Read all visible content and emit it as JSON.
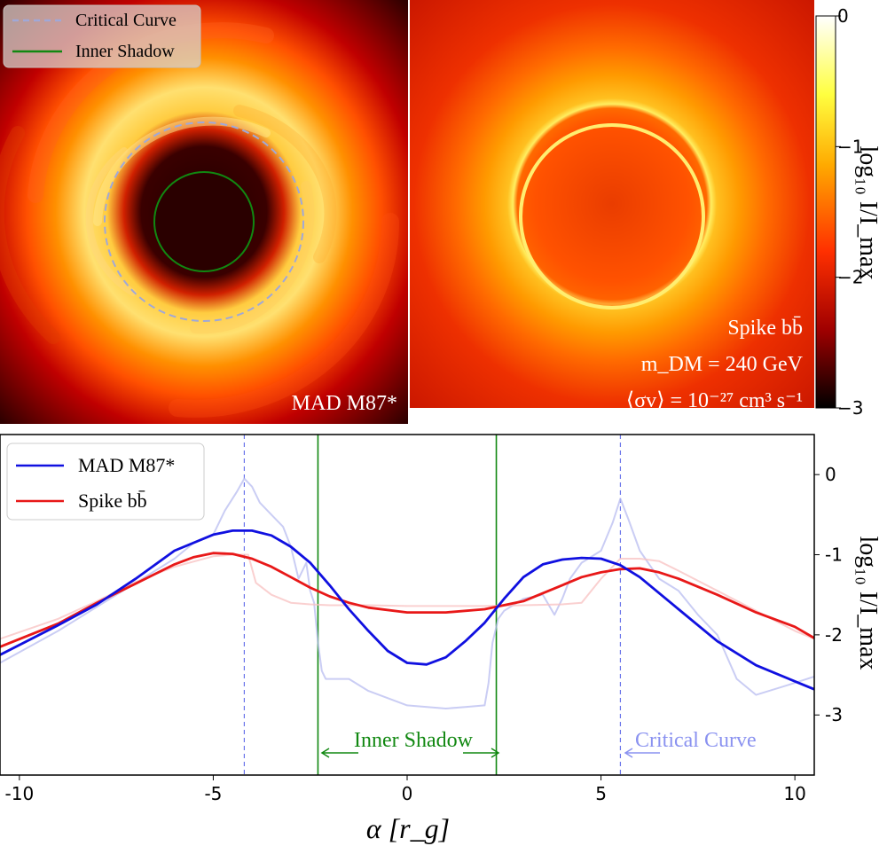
{
  "chart_data": [
    {
      "type": "heatmap",
      "panels": [
        {
          "label": "MAD M87*",
          "overlays": [
            {
              "name": "Critical Curve",
              "style": "dashed",
              "color": "#a0a8d8",
              "radius_rg": 5.5
            },
            {
              "name": "Inner Shadow",
              "style": "solid",
              "color": "#118811",
              "radius_rg": 2.3
            }
          ]
        },
        {
          "label_lines": [
            "Spike bb̄",
            "m_DM = 240 GeV",
            "⟨σv⟩ = 10⁻²⁷ cm³ s⁻¹"
          ]
        }
      ],
      "legend": [
        {
          "label": "Critical Curve",
          "style": "dashed",
          "color": "#a0a8d8"
        },
        {
          "label": "Inner Shadow",
          "style": "solid",
          "color": "#118811"
        }
      ],
      "colorbar": {
        "label": "log₁₀ I/I_max",
        "range": [
          -3,
          0
        ],
        "ticks": [
          "0",
          "−1",
          "−2",
          "−3"
        ],
        "tick_values": [
          0,
          -1,
          -2,
          -3
        ],
        "colormap": "hot"
      }
    },
    {
      "type": "line",
      "xlabel": "α [r_g]",
      "ylabel": "log₁₀ I/I_max",
      "xlim": [
        -10.5,
        10.5
      ],
      "ylim": [
        -3.75,
        0.5
      ],
      "xticks": [
        -10,
        -5,
        0,
        5,
        10
      ],
      "xtick_labels": [
        "-10",
        "-5",
        "0",
        "5",
        "10"
      ],
      "yticks": [
        0,
        -1,
        -2,
        -3
      ],
      "ytick_labels": [
        "0",
        "-1",
        "-2",
        "-3"
      ],
      "legend_position": "top-left",
      "series": [
        {
          "name": "MAD M87*",
          "color": "#1010e0",
          "x": [
            -10.5,
            -9,
            -8,
            -7,
            -6,
            -5,
            -4.5,
            -4,
            -3.5,
            -3,
            -2.5,
            -2,
            -1.5,
            -1,
            -0.5,
            0,
            0.5,
            1,
            1.5,
            2,
            2.5,
            3,
            3.5,
            4,
            4.5,
            5,
            5.5,
            6,
            7,
            8,
            9,
            10,
            10.5
          ],
          "y": [
            -2.25,
            -1.88,
            -1.62,
            -1.3,
            -0.95,
            -0.75,
            -0.7,
            -0.7,
            -0.76,
            -0.9,
            -1.1,
            -1.38,
            -1.68,
            -1.95,
            -2.2,
            -2.35,
            -2.37,
            -2.28,
            -2.08,
            -1.85,
            -1.55,
            -1.28,
            -1.12,
            -1.06,
            -1.04,
            -1.05,
            -1.13,
            -1.28,
            -1.68,
            -2.08,
            -2.38,
            -2.58,
            -2.68
          ]
        },
        {
          "name": "Spike bb̄",
          "color": "#e81818",
          "x": [
            -10.5,
            -9,
            -8,
            -7,
            -6,
            -5.5,
            -5,
            -4.5,
            -4,
            -3.5,
            -3,
            -2.5,
            -2,
            -1.5,
            -1,
            0,
            1,
            2,
            3,
            3.5,
            4,
            4.5,
            5,
            5.5,
            6,
            6.5,
            7,
            8,
            9,
            10,
            10.5
          ],
          "y": [
            -2.15,
            -1.86,
            -1.6,
            -1.36,
            -1.12,
            -1.03,
            -0.98,
            -0.99,
            -1.05,
            -1.15,
            -1.28,
            -1.41,
            -1.52,
            -1.6,
            -1.66,
            -1.72,
            -1.72,
            -1.68,
            -1.58,
            -1.48,
            -1.38,
            -1.28,
            -1.22,
            -1.18,
            -1.17,
            -1.22,
            -1.3,
            -1.5,
            -1.72,
            -1.9,
            -2.04
          ]
        },
        {
          "name": "",
          "color": "#b8bcf0",
          "faded": true,
          "x": [
            -10.5,
            -9,
            -8,
            -7,
            -6.5,
            -6,
            -5.5,
            -5,
            -4.7,
            -4.4,
            -4.2,
            -4,
            -3.8,
            -3.5,
            -3.2,
            -3,
            -2.8,
            -2.6,
            -2.5,
            -2.4,
            -2.3,
            -2.2,
            -2.1,
            -1.5,
            -1,
            0,
            1,
            1.5,
            2,
            2.1,
            2.2,
            2.35,
            2.5,
            3,
            3.5,
            3.8,
            4,
            4.2,
            4.5,
            5,
            5.3,
            5.5,
            5.7,
            6,
            6.5,
            7,
            7.5,
            8,
            8.5,
            9,
            10,
            10.5
          ],
          "y": [
            -2.35,
            -1.95,
            -1.65,
            -1.35,
            -1.2,
            -1.05,
            -0.85,
            -0.75,
            -0.45,
            -0.22,
            -0.05,
            -0.15,
            -0.35,
            -0.5,
            -0.65,
            -0.9,
            -1.3,
            -1.1,
            -1.45,
            -1.6,
            -2.1,
            -2.45,
            -2.55,
            -2.55,
            -2.7,
            -2.88,
            -2.92,
            -2.9,
            -2.88,
            -2.6,
            -2.1,
            -1.8,
            -1.7,
            -1.55,
            -1.5,
            -1.75,
            -1.55,
            -1.3,
            -1.1,
            -0.95,
            -0.6,
            -0.3,
            -0.55,
            -0.95,
            -1.3,
            -1.45,
            -1.75,
            -2.0,
            -2.55,
            -2.75,
            -2.6,
            -2.52
          ]
        },
        {
          "name": "",
          "color": "#f8c0c0",
          "faded": true,
          "x": [
            -10.5,
            -9,
            -8,
            -7,
            -6,
            -5,
            -4.5,
            -4.1,
            -3.9,
            -3.5,
            -3,
            -2.5,
            -2,
            -1,
            0,
            1,
            2,
            3,
            4,
            4.5,
            5,
            5.5,
            6,
            6.5,
            7,
            8,
            9,
            10,
            10.5
          ],
          "y": [
            -2.05,
            -1.8,
            -1.58,
            -1.34,
            -1.15,
            -1.02,
            -1.0,
            -1.0,
            -1.35,
            -1.5,
            -1.6,
            -1.62,
            -1.63,
            -1.63,
            -1.64,
            -1.64,
            -1.64,
            -1.63,
            -1.62,
            -1.6,
            -1.3,
            -1.05,
            -1.05,
            -1.08,
            -1.2,
            -1.45,
            -1.7,
            -1.95,
            -2.05
          ]
        }
      ],
      "vlines": [
        {
          "x": -4.2,
          "style": "dashed",
          "color": "#6a74ea"
        },
        {
          "x": 5.5,
          "style": "dashed",
          "color": "#6a74ea"
        },
        {
          "x": -2.3,
          "style": "solid",
          "color": "#118811"
        },
        {
          "x": 2.3,
          "style": "solid",
          "color": "#118811"
        }
      ],
      "annotations": [
        {
          "text": "Inner Shadow",
          "color": "#118811"
        },
        {
          "text": "Critical Curve",
          "color": "#8a92f0"
        }
      ]
    }
  ]
}
